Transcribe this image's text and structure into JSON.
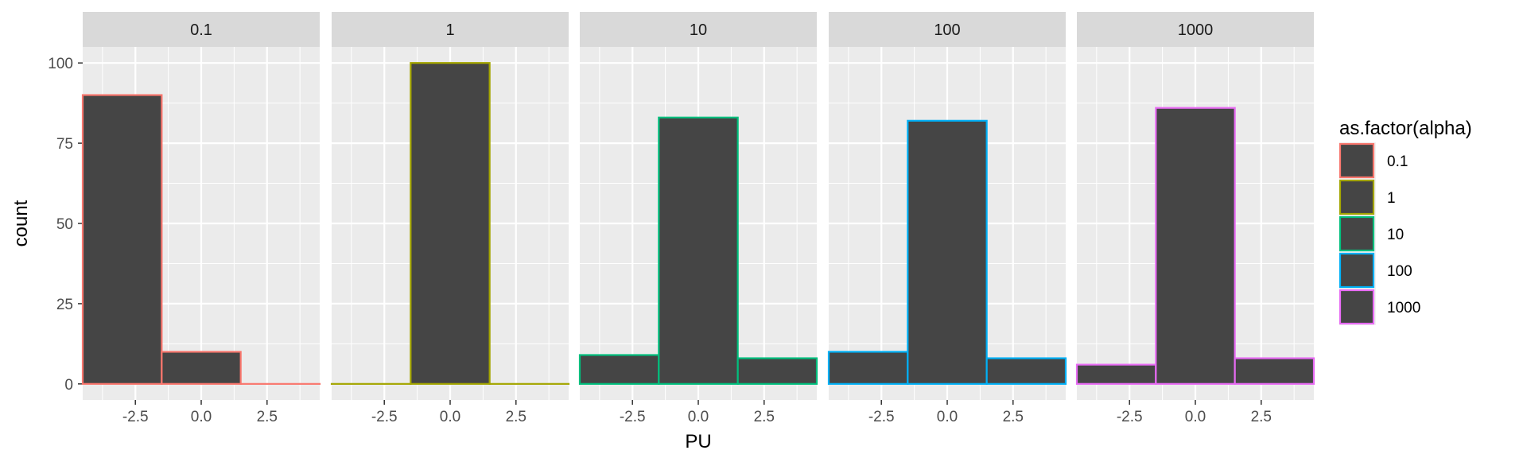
{
  "chart_data": {
    "type": "bar",
    "kind": "faceted histogram",
    "xlabel": "PU",
    "ylabel": "count",
    "x_ticks": [
      -2.5,
      0.0,
      2.5
    ],
    "x_tick_labels": [
      "-2.5",
      "0.0",
      "2.5"
    ],
    "y_ticks": [
      0,
      25,
      50,
      75,
      100
    ],
    "y_tick_labels": [
      "0",
      "25",
      "50",
      "75",
      "100"
    ],
    "xlim": [
      -4.5,
      4.5
    ],
    "ylim": [
      -5,
      105
    ],
    "bin_edges": [
      -4.5,
      -1.5,
      1.5,
      4.5
    ],
    "fill_color": "#454545",
    "panel_background": "#ebebeb",
    "strip_background": "#d9d9d9",
    "grid": true,
    "legend_position": "right",
    "legend": {
      "title": "as.factor(alpha)",
      "entries": [
        {
          "label": "0.1",
          "color": "#F8766D"
        },
        {
          "label": "1",
          "color": "#A3A500"
        },
        {
          "label": "10",
          "color": "#00BF7D"
        },
        {
          "label": "100",
          "color": "#00B0F6"
        },
        {
          "label": "1000",
          "color": "#E76BF3"
        }
      ]
    },
    "series": [
      {
        "name": "0.1",
        "color": "#F8766D",
        "values": [
          90,
          10,
          0
        ]
      },
      {
        "name": "1",
        "color": "#A3A500",
        "values": [
          0,
          100,
          0
        ]
      },
      {
        "name": "10",
        "color": "#00BF7D",
        "values": [
          9,
          83,
          8
        ]
      },
      {
        "name": "100",
        "color": "#00B0F6",
        "values": [
          10,
          82,
          8
        ]
      },
      {
        "name": "1000",
        "color": "#E76BF3",
        "values": [
          6,
          86,
          8
        ]
      }
    ]
  }
}
